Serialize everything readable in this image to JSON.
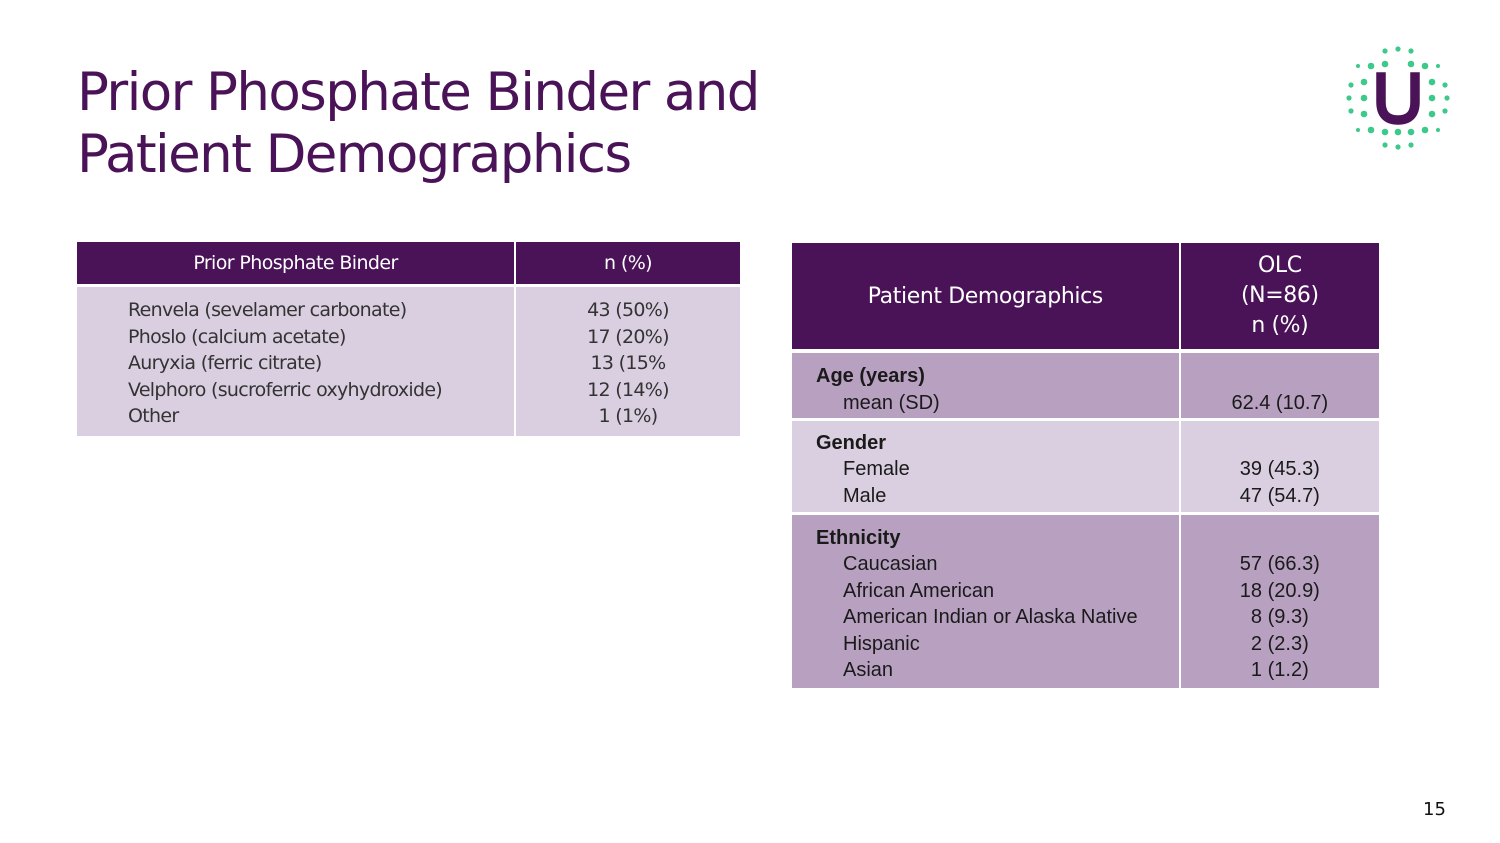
{
  "slide": {
    "title_line1": "Prior Phosphate Binder and",
    "title_line2": "Patient Demographics",
    "page_number": "15",
    "logo_letter": "U",
    "colors": {
      "primary": "#4a1257",
      "accent_green": "#3cc98a",
      "row_light": "#dacfe0",
      "row_dark": "#b8a0c0"
    }
  },
  "binder_table": {
    "header_col1": "Prior Phosphate Binder",
    "header_col2": "n (%)",
    "rows": [
      {
        "label": "Renvela (sevelamer carbonate)",
        "value": "43 (50%)"
      },
      {
        "label": "Phoslo (calcium acetate)",
        "value": "17 (20%)"
      },
      {
        "label": "Auryxia (ferric citrate)",
        "value": "13 (15%"
      },
      {
        "label": "Velphoro (sucroferric oxyhydroxide)",
        "value": "12 (14%)"
      },
      {
        "label": "Other",
        "value": "1 (1%)"
      }
    ]
  },
  "demographics_table": {
    "header_col1": "Patient Demographics",
    "header_col2_line1": "OLC",
    "header_col2_line2": "(N=86)",
    "header_col2_line3": "n (%)",
    "sections": [
      {
        "heading": "Age (years)",
        "items": [
          {
            "label": "mean (SD)",
            "value": "62.4 (10.7)"
          }
        ]
      },
      {
        "heading": "Gender",
        "items": [
          {
            "label": "Female",
            "value": "39 (45.3)"
          },
          {
            "label": "Male",
            "value": "47 (54.7)"
          }
        ]
      },
      {
        "heading": "Ethnicity",
        "items": [
          {
            "label": "Caucasian",
            "value": "57 (66.3)"
          },
          {
            "label": "African American",
            "value": "18 (20.9)"
          },
          {
            "label": "American Indian or Alaska Native",
            "value": "8 (9.3)"
          },
          {
            "label": "Hispanic",
            "value": "2 (2.3)"
          },
          {
            "label": "Asian",
            "value": "1 (1.2)"
          }
        ]
      }
    ]
  }
}
